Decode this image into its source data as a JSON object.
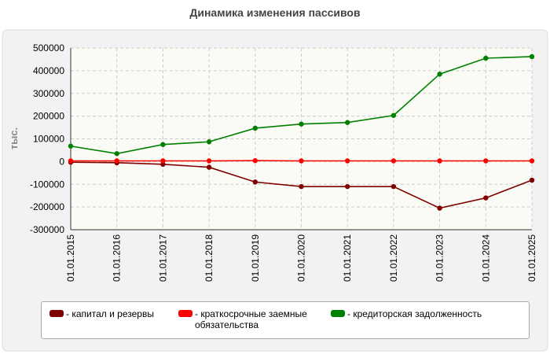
{
  "chart_data": {
    "type": "line",
    "title": "Динамика изменения пассивов",
    "y_label": "тыс.",
    "categories": [
      "01.01.2015",
      "01.01.2016",
      "01.01.2017",
      "01.01.2018",
      "01.01.2019",
      "01.01.2020",
      "01.01.2021",
      "01.01.2022",
      "01.01.2023",
      "01.01.2024",
      "01.01.2025"
    ],
    "series": [
      {
        "name": "капитал и резервы",
        "color": "#800000",
        "values": [
          -3000,
          -5000,
          -12000,
          -25000,
          -90000,
          -110000,
          -110000,
          -110000,
          -205000,
          -160000,
          -82000
        ]
      },
      {
        "name": "краткосрочные заемные обязательства",
        "color": "#ff0000",
        "values": [
          3000,
          3000,
          3000,
          3000,
          4000,
          3000,
          3000,
          3000,
          3000,
          3000,
          3000
        ]
      },
      {
        "name": "кредиторская задолженность",
        "color": "#008000",
        "values": [
          68000,
          35000,
          75000,
          87000,
          147000,
          165000,
          172000,
          203000,
          385000,
          455000,
          462000
        ]
      }
    ],
    "ylim": [
      -300000,
      500000
    ],
    "yticks": [
      -300000,
      -200000,
      -100000,
      0,
      100000,
      200000,
      300000,
      400000,
      500000
    ],
    "grid": true
  }
}
